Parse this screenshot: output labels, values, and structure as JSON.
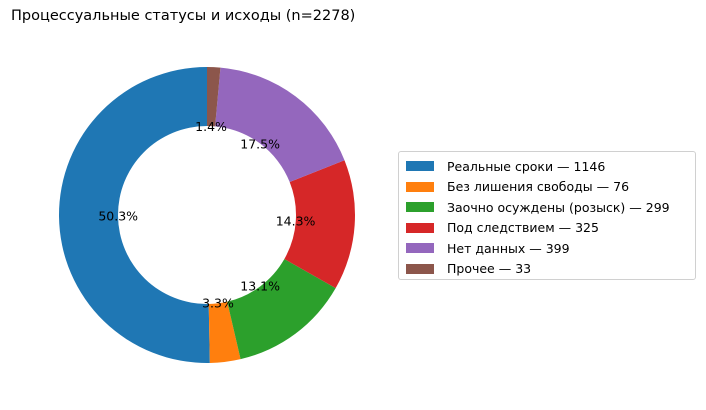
{
  "chart_data": {
    "type": "pie",
    "variant": "donut",
    "title": "Процессуальные статусы и исходы (n=2278)",
    "total": 2278,
    "categories": [
      "Реальные сроки",
      "Без лишения свободы",
      "Заочно осуждены (розыск)",
      "Под следствием",
      "Нет данных",
      "Прочее"
    ],
    "values": [
      1146,
      76,
      299,
      325,
      399,
      33
    ],
    "percent_labels": [
      "50.3%",
      "3.3%",
      "13.1%",
      "14.3%",
      "17.5%",
      "1.4%"
    ],
    "colors": [
      "#1f77b4",
      "#ff7f0e",
      "#2ca02c",
      "#d62728",
      "#9467bd",
      "#8c564b"
    ],
    "start_angle_deg": 90,
    "direction": "counterclockwise",
    "legend_position": "right",
    "legend_labels": [
      "Реальные сроки — 1146",
      "Без лишения свободы — 76",
      "Заочно осуждены (розыск) — 299",
      "Под следствием — 325",
      "Нет данных — 399",
      "Прочее — 33"
    ]
  }
}
